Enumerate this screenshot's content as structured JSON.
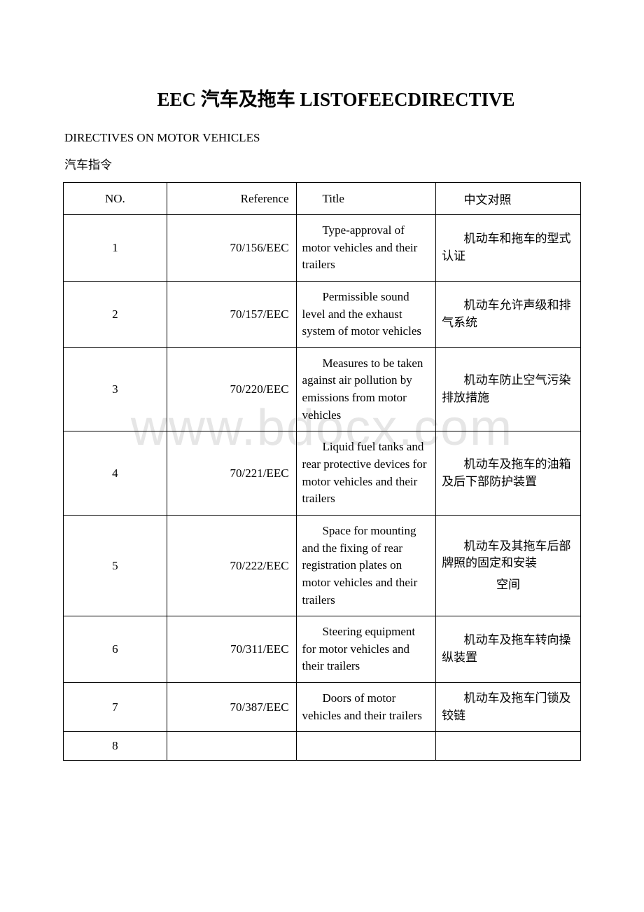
{
  "title": "EEC 汽车及拖车 LISTOFEECDIRECTIVE",
  "subtitle1": "DIRECTIVES ON MOTOR VEHICLES",
  "subtitle2": "汽车指令",
  "watermark": "www.bdocx.com",
  "header": {
    "no": "NO.",
    "ref": "Reference",
    "title": "Title",
    "zh": "中文对照"
  },
  "rows": [
    {
      "no": "1",
      "ref": "70/156/EEC",
      "title": "Type-approval of motor vehicles and their trailers",
      "zh": "机动车和拖车的型式认证"
    },
    {
      "no": "2",
      "ref": "70/157/EEC",
      "title": "Permissible sound level and the exhaust system of motor vehicles",
      "zh": "机动车允许声级和排气系统"
    },
    {
      "no": "3",
      "ref": "70/220/EEC",
      "title": "Measures to be taken against air pollution by emissions from motor vehicles",
      "zh": "机动车防止空气污染排放措施"
    },
    {
      "no": "4",
      "ref": "70/221/EEC",
      "title": "Liquid fuel tanks and rear protective devices for motor vehicles and their trailers",
      "zh": "机动车及拖车的油箱及后下部防护装置"
    },
    {
      "no": "5",
      "ref": "70/222/EEC",
      "title": "Space for mounting and the fixing of rear registration plates on motor vehicles and their trailers",
      "zh": "机动车及其拖车后部牌照的固定和安装",
      "zhExtra": "空间"
    },
    {
      "no": "6",
      "ref": "70/311/EEC",
      "title": "Steering equipment for motor vehicles and their trailers",
      "zh": "机动车及拖车转向操纵装置"
    },
    {
      "no": "7",
      "ref": "70/387/EEC",
      "title": "Doors of motor vehicles and their trailers",
      "zh": "机动车及拖车门锁及铰链"
    },
    {
      "no": "8",
      "ref": "",
      "title": "",
      "zh": ""
    }
  ]
}
